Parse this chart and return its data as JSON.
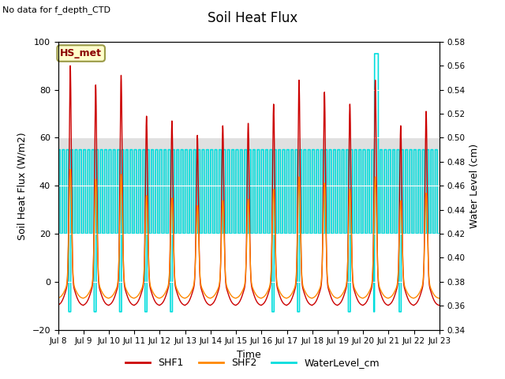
{
  "title": "Soil Heat Flux",
  "no_data_text": "No data for f_depth_CTD",
  "annotation_box": "HS_met",
  "xlabel": "Time",
  "ylabel_left": "Soil Heat Flux (W/m2)",
  "ylabel_right": "Water Level (cm)",
  "ylim_left": [
    -20,
    100
  ],
  "ylim_right": [
    0.34,
    0.58
  ],
  "yticks_left": [
    -20,
    0,
    20,
    40,
    60,
    80,
    100
  ],
  "yticks_right": [
    0.34,
    0.36,
    0.38,
    0.4,
    0.42,
    0.44,
    0.46,
    0.48,
    0.5,
    0.52,
    0.54,
    0.56,
    0.58
  ],
  "xstart_day": 8,
  "xend_day": 23,
  "xtick_labels": [
    "Jul 8",
    "Jul 9",
    "Jul 10",
    "Jul 11",
    "Jul 12",
    "Jul 13",
    "Jul 14",
    "Jul 15",
    "Jul 16",
    "Jul 17",
    "Jul 18",
    "Jul 19",
    "Jul 20",
    "Jul 21",
    "Jul 22",
    "Jul 23"
  ],
  "shf_band_low": 20,
  "shf_band_high": 60,
  "colors": {
    "SHF1": "#cc0000",
    "SHF2": "#ff8800",
    "WaterLevel_cm": "#00dddd",
    "band_fill": "#e0e0e0",
    "annotation_bg": "#ffffcc",
    "annotation_border": "#999944"
  },
  "legend_labels": [
    "SHF1",
    "SHF2",
    "WaterLevel_cm"
  ],
  "linewidths": {
    "SHF1": 1.0,
    "SHF2": 1.0,
    "WaterLevel_cm": 1.2
  },
  "shf1_peaks": [
    90,
    82,
    86,
    69,
    67,
    61,
    65,
    66,
    74,
    84,
    79,
    74,
    84,
    65,
    71
  ],
  "wl_high": 0.49,
  "wl_low": 0.42,
  "wl_vlow": 0.355,
  "wl_spike": 0.57,
  "wl_spike_day": 13
}
